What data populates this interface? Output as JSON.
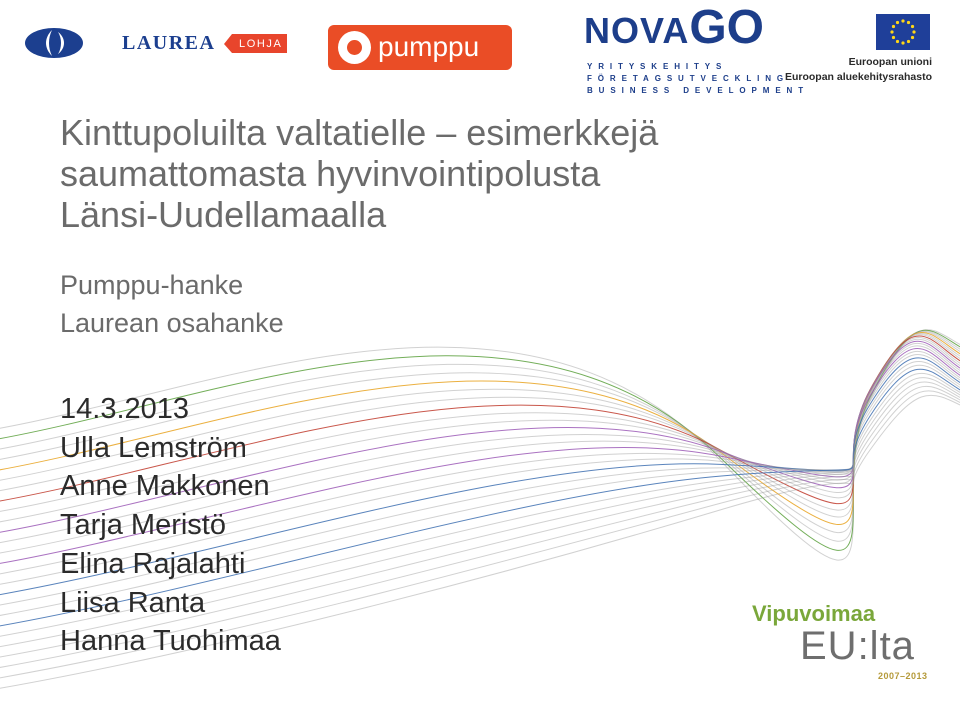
{
  "logos": {
    "laurea": {
      "name": "LAUREA",
      "tag": "LOHJA"
    },
    "pumppu": {
      "name": "pumppu"
    },
    "novago": {
      "name_left": "NOVA",
      "name_right": "GO",
      "line1": "YRITYSKEHITYS",
      "line2": "FÖRETAGSUTVECKLING",
      "line3": "BUSINESS DEVELOPMENT"
    },
    "eu": {
      "line1": "Euroopan unioni",
      "line2": "Euroopan aluekehitysrahasto"
    },
    "vipuvoimaa": {
      "line1": "Vipuvoimaa",
      "line2": "EU:lta",
      "years": "2007–2013"
    }
  },
  "title": {
    "line1": "Kinttupoluilta valtatielle – esimerkkejä",
    "line2": "saumattomasta hyvinvointipolusta",
    "line3": "Länsi-Uudellamaalla"
  },
  "subtitle": {
    "line1": "Pumppu-hanke",
    "line2": "Laurean osahanke"
  },
  "date": "14.3.2013",
  "authors": [
    "Ulla Lemström",
    "Anne Makkonen",
    "Tarja Meristö",
    "Elina Rajalahti",
    "Liisa Ranta",
    "Hanna Tuohimaa"
  ],
  "colors": {
    "title": "#6b6b6b",
    "body_text": "#2b2b2b",
    "laurea_blue": "#1c3f8f",
    "lohja_red": "#e8452c",
    "pumppu_orange": "#ea4d26",
    "novago_blue": "#1d3e8a",
    "eu_blue": "#1f3f99",
    "eu_star": "#ffd617",
    "vipu_green": "#7aa73a",
    "vipu_gray": "#6e6e6e",
    "wave_colors": [
      "#5aa03c",
      "#e8a21f",
      "#c0392b",
      "#9b59b6",
      "#3d6fb0",
      "#9a9a9a"
    ]
  }
}
